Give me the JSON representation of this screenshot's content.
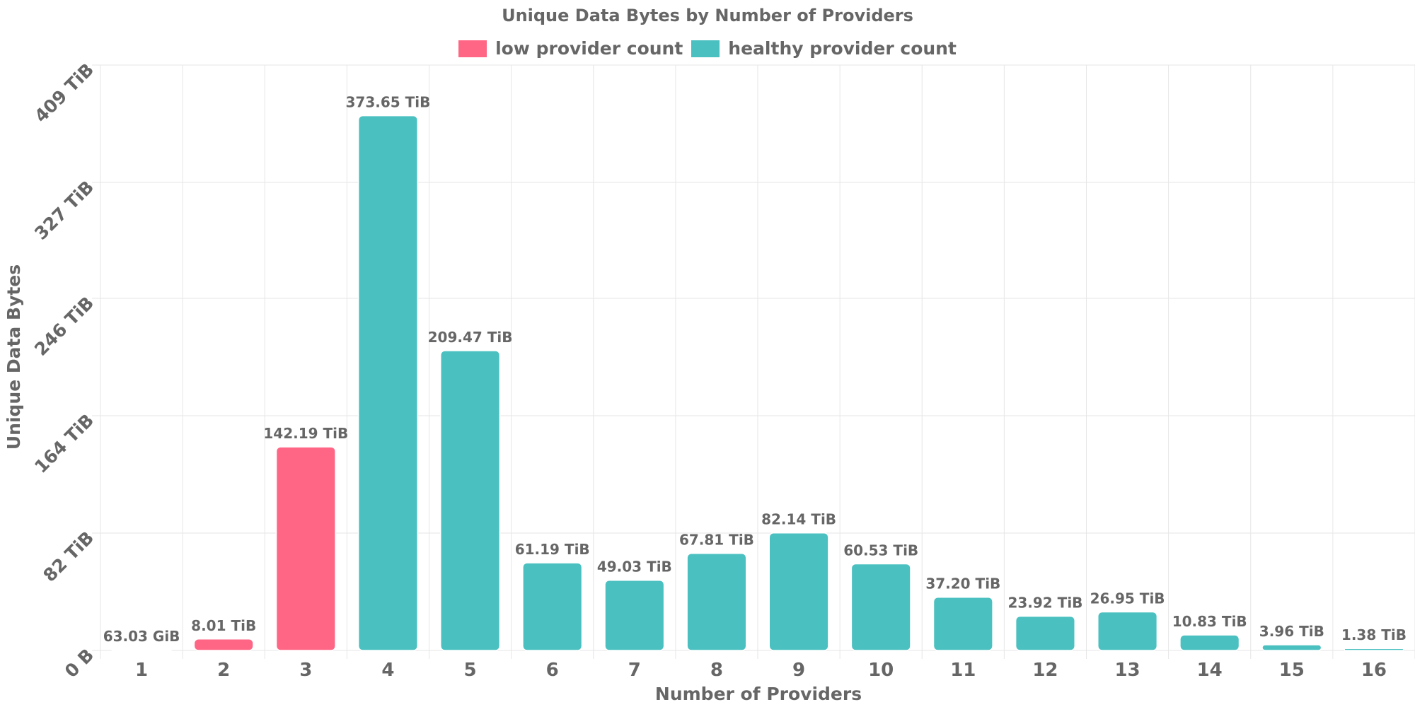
{
  "chart_data": {
    "type": "bar",
    "title": "Unique Data Bytes by Number of Providers",
    "xlabel": "Number of Providers",
    "ylabel": "Unique Data Bytes",
    "categories": [
      "1",
      "2",
      "3",
      "4",
      "5",
      "6",
      "7",
      "8",
      "9",
      "10",
      "11",
      "12",
      "13",
      "14",
      "15",
      "16"
    ],
    "values_tib": [
      0.0616,
      8.01,
      142.19,
      373.65,
      209.47,
      61.19,
      49.03,
      67.81,
      82.14,
      60.53,
      37.2,
      23.92,
      26.95,
      10.83,
      3.96,
      1.38
    ],
    "data_labels": [
      "63.03 GiB",
      "8.01 TiB",
      "142.19 TiB",
      "373.65 TiB",
      "209.47 TiB",
      "61.19 TiB",
      "49.03 TiB",
      "67.81 TiB",
      "82.14 TiB",
      "60.53 TiB",
      "37.20 TiB",
      "23.92 TiB",
      "26.95 TiB",
      "10.83 TiB",
      "3.96 TiB",
      "1.38 TiB"
    ],
    "series_membership": [
      "low",
      "low",
      "low",
      "healthy",
      "healthy",
      "healthy",
      "healthy",
      "healthy",
      "healthy",
      "healthy",
      "healthy",
      "healthy",
      "healthy",
      "healthy",
      "healthy",
      "healthy"
    ],
    "legend": [
      {
        "key": "low",
        "label": "low provider count",
        "color": "#ff6685"
      },
      {
        "key": "healthy",
        "label": "healthy provider count",
        "color": "#4bc0c0"
      }
    ],
    "yticks": [
      0,
      82,
      164,
      246,
      327,
      409
    ],
    "ytick_labels": [
      "0 B",
      "82 TiB",
      "164 TiB",
      "246 TiB",
      "327 TiB",
      "409 TiB"
    ],
    "ylim": [
      0,
      409
    ],
    "grid": true,
    "legend_position": "top-center"
  }
}
